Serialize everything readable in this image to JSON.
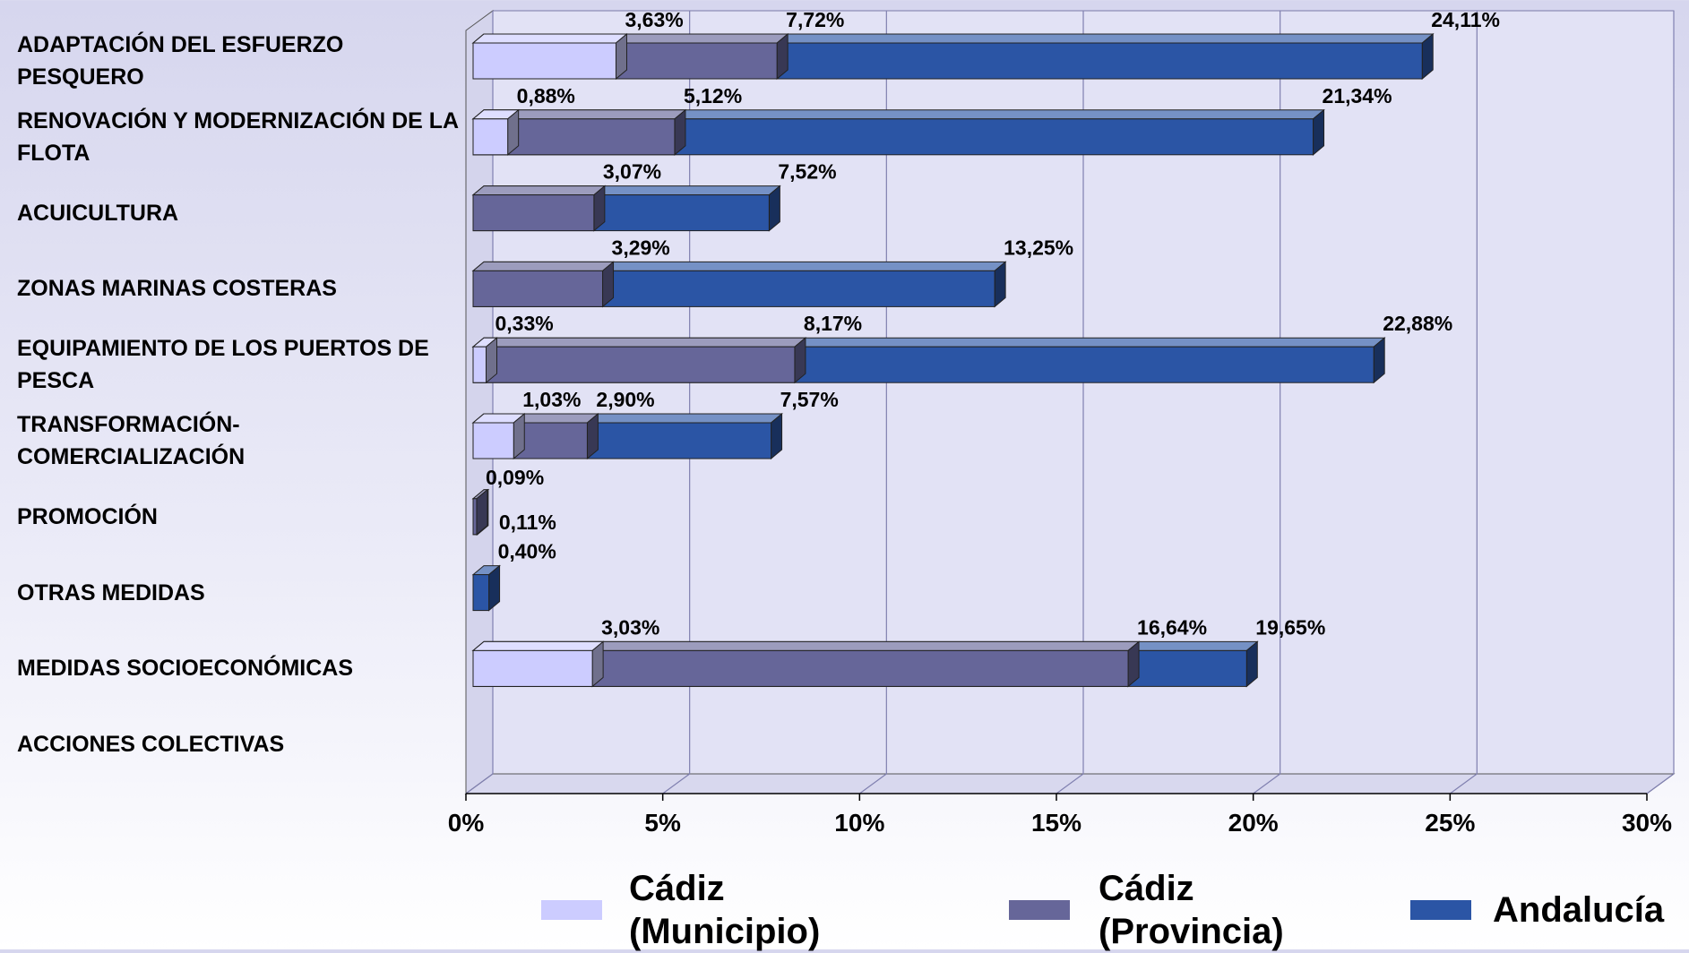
{
  "chart_data": {
    "type": "bar",
    "orientation": "horizontal",
    "mode": "overlap",
    "categories": [
      "ADAPTACIÓN DEL ESFUERZO PESQUERO",
      "RENOVACIÓN Y MODERNIZACIÓN DE LA FLOTA",
      "ACUICULTURA",
      "ZONAS MARINAS COSTERAS",
      "EQUIPAMIENTO DE LOS PUERTOS DE PESCA",
      "TRANSFORMACIÓN-COMERCIALIZACIÓN",
      "PROMOCIÓN",
      "OTRAS MEDIDAS",
      "MEDIDAS SOCIOECONÓMICAS",
      "ACCIONES COLECTIVAS"
    ],
    "series": [
      {
        "name": "Cádiz (Municipio)",
        "color": "#ccccff",
        "values": [
          3.63,
          0.88,
          null,
          null,
          0.33,
          1.03,
          null,
          null,
          3.03,
          null
        ],
        "value_labels": [
          "3,63%",
          "0,88%",
          null,
          null,
          "0,33%",
          "1,03%",
          null,
          null,
          "3,03%",
          null
        ]
      },
      {
        "name": "Cádiz (Provincia)",
        "color": "#666699",
        "values": [
          7.72,
          5.12,
          3.07,
          3.29,
          8.17,
          2.9,
          0.09,
          null,
          16.64,
          null
        ],
        "value_labels": [
          "7,72%",
          "5,12%",
          "3,07%",
          "3,29%",
          "8,17%",
          "2,90%",
          "0,09%",
          null,
          "16,64%",
          null
        ]
      },
      {
        "name": "Andalucía",
        "color": "#2b55a5",
        "values": [
          24.11,
          21.34,
          7.52,
          13.25,
          22.88,
          7.57,
          0.11,
          0.4,
          19.65,
          null
        ],
        "value_labels": [
          "24,11%",
          "21,34%",
          "7,52%",
          "13,25%",
          "22,88%",
          "7,57%",
          "0,11%",
          "0,40%",
          "19,65%",
          null
        ]
      }
    ],
    "xlim": [
      0,
      30
    ],
    "xticks": [
      {
        "value": 0,
        "label": "0%"
      },
      {
        "value": 5,
        "label": "5%"
      },
      {
        "value": 10,
        "label": "10%"
      },
      {
        "value": 15,
        "label": "15%"
      },
      {
        "value": 20,
        "label": "20%"
      },
      {
        "value": 25,
        "label": "25%"
      },
      {
        "value": 30,
        "label": "30%"
      }
    ],
    "grid": true,
    "legend": "bottom"
  }
}
